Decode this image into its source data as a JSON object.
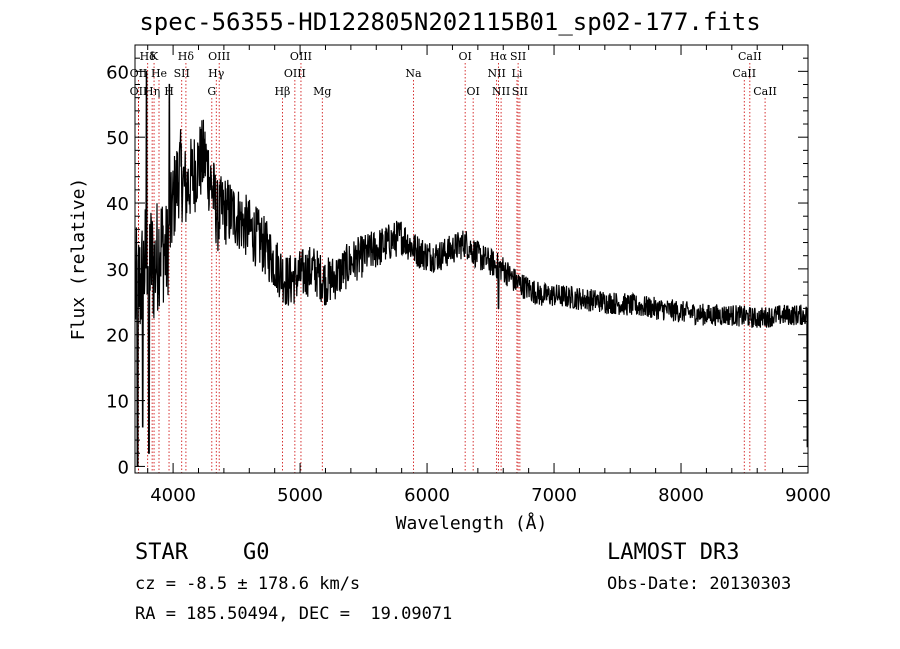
{
  "chart_data": {
    "type": "line",
    "title": "spec-56355-HD122805N202115B01_sp02-177.fits",
    "xlabel": "Wavelength (Å)",
    "ylabel": "Flux (relative)",
    "xlim": [
      3700,
      9000
    ],
    "ylim": [
      -1,
      64
    ],
    "x_ticks": [
      4000,
      5000,
      6000,
      7000,
      8000,
      9000
    ],
    "y_ticks": [
      0,
      10,
      20,
      30,
      40,
      50,
      60
    ],
    "x_tick_labels": [
      "4000",
      "5000",
      "6000",
      "7000",
      "8000",
      "9000"
    ],
    "y_tick_labels": [
      "0",
      "10",
      "20",
      "30",
      "40",
      "50",
      "60"
    ],
    "grid": false,
    "line_color": "#000000",
    "marker_color": "#cc0000",
    "continuum": [
      {
        "x": 3700,
        "y": 26
      },
      {
        "x": 3750,
        "y": 28
      },
      {
        "x": 3800,
        "y": 33
      },
      {
        "x": 3850,
        "y": 30
      },
      {
        "x": 3900,
        "y": 34
      },
      {
        "x": 3950,
        "y": 32
      },
      {
        "x": 4000,
        "y": 40
      },
      {
        "x": 4050,
        "y": 45
      },
      {
        "x": 4100,
        "y": 42
      },
      {
        "x": 4150,
        "y": 44
      },
      {
        "x": 4200,
        "y": 46
      },
      {
        "x": 4250,
        "y": 47
      },
      {
        "x": 4300,
        "y": 43
      },
      {
        "x": 4350,
        "y": 38
      },
      {
        "x": 4400,
        "y": 39
      },
      {
        "x": 4500,
        "y": 38
      },
      {
        "x": 4600,
        "y": 36
      },
      {
        "x": 4700,
        "y": 34
      },
      {
        "x": 4800,
        "y": 31
      },
      {
        "x": 4900,
        "y": 28
      },
      {
        "x": 5000,
        "y": 29
      },
      {
        "x": 5100,
        "y": 30
      },
      {
        "x": 5200,
        "y": 28
      },
      {
        "x": 5300,
        "y": 29
      },
      {
        "x": 5400,
        "y": 31
      },
      {
        "x": 5500,
        "y": 32
      },
      {
        "x": 5600,
        "y": 33
      },
      {
        "x": 5700,
        "y": 34
      },
      {
        "x": 5800,
        "y": 35
      },
      {
        "x": 5900,
        "y": 33
      },
      {
        "x": 6000,
        "y": 32
      },
      {
        "x": 6100,
        "y": 32
      },
      {
        "x": 6200,
        "y": 33
      },
      {
        "x": 6300,
        "y": 34
      },
      {
        "x": 6400,
        "y": 32
      },
      {
        "x": 6500,
        "y": 31
      },
      {
        "x": 6600,
        "y": 30
      },
      {
        "x": 6700,
        "y": 28
      },
      {
        "x": 6800,
        "y": 27
      },
      {
        "x": 6900,
        "y": 26
      },
      {
        "x": 7000,
        "y": 26
      },
      {
        "x": 7200,
        "y": 25.5
      },
      {
        "x": 7400,
        "y": 25
      },
      {
        "x": 7600,
        "y": 24.5
      },
      {
        "x": 7800,
        "y": 24
      },
      {
        "x": 8000,
        "y": 23.5
      },
      {
        "x": 8200,
        "y": 23
      },
      {
        "x": 8400,
        "y": 23
      },
      {
        "x": 8600,
        "y": 22.5
      },
      {
        "x": 8800,
        "y": 23
      },
      {
        "x": 8950,
        "y": 23
      }
    ],
    "noise_amplitude": [
      {
        "x": 3700,
        "a": 10
      },
      {
        "x": 3900,
        "a": 9
      },
      {
        "x": 4000,
        "a": 7
      },
      {
        "x": 4300,
        "a": 6
      },
      {
        "x": 4500,
        "a": 5
      },
      {
        "x": 5000,
        "a": 4
      },
      {
        "x": 6000,
        "a": 2.5
      },
      {
        "x": 7000,
        "a": 1.8
      },
      {
        "x": 9000,
        "a": 1.6
      }
    ],
    "features": [
      {
        "x": 3720,
        "y": 0
      },
      {
        "x": 3760,
        "y": 6
      },
      {
        "x": 3790,
        "y": 60
      },
      {
        "x": 3810,
        "y": 2
      },
      {
        "x": 3970,
        "y": 58
      },
      {
        "x": 6563,
        "y": 24
      },
      {
        "x": 8990,
        "y": 24
      },
      {
        "x": 8995,
        "y": 3
      }
    ],
    "lines": [
      {
        "label": "Hδ",
        "x": 3800,
        "row": 0
      },
      {
        "label": "K",
        "x": 3850,
        "row": 0
      },
      {
        "label": "Hδ",
        "x": 4101,
        "row": 0
      },
      {
        "label": "OIII",
        "x": 4363,
        "row": 0
      },
      {
        "label": "OIII",
        "x": 5007,
        "row": 0
      },
      {
        "label": "OI",
        "x": 6300,
        "row": 0
      },
      {
        "label": "Hα",
        "x": 6563,
        "row": 0
      },
      {
        "label": "SII",
        "x": 6717,
        "row": 0
      },
      {
        "label": "CaII",
        "x": 8542,
        "row": 0
      },
      {
        "label": "OII",
        "x": 3727,
        "row": 1
      },
      {
        "label": "He",
        "x": 3889,
        "row": 1
      },
      {
        "label": "SII",
        "x": 4068,
        "row": 1
      },
      {
        "label": "Hγ",
        "x": 4340,
        "row": 1
      },
      {
        "label": "OIII",
        "x": 4959,
        "row": 1
      },
      {
        "label": "Na",
        "x": 5893,
        "row": 1
      },
      {
        "label": "NII",
        "x": 6548,
        "row": 1
      },
      {
        "label": "Li",
        "x": 6708,
        "row": 1
      },
      {
        "label": "CaII",
        "x": 8498,
        "row": 1
      },
      {
        "label": "OII",
        "x": 3727,
        "row": 2
      },
      {
        "label": "Hη",
        "x": 3835,
        "row": 2
      },
      {
        "label": "H",
        "x": 3968,
        "row": 2
      },
      {
        "label": "G",
        "x": 4305,
        "row": 2
      },
      {
        "label": "Hβ",
        "x": 4861,
        "row": 2
      },
      {
        "label": "Mg",
        "x": 5175,
        "row": 2
      },
      {
        "label": "OI",
        "x": 6363,
        "row": 2
      },
      {
        "label": "NII",
        "x": 6583,
        "row": 2
      },
      {
        "label": "SII",
        "x": 6731,
        "row": 2
      },
      {
        "label": "CaII",
        "x": 8662,
        "row": 2
      }
    ]
  },
  "info": {
    "object_class": "STAR",
    "subclass": "G0",
    "survey": "LAMOST DR3",
    "redshift": "cz = -8.5 ± 178.6 km/s",
    "obs_date": "Obs-Date: 20130303",
    "coords": "RA = 185.50494, DEC =  19.09071"
  }
}
